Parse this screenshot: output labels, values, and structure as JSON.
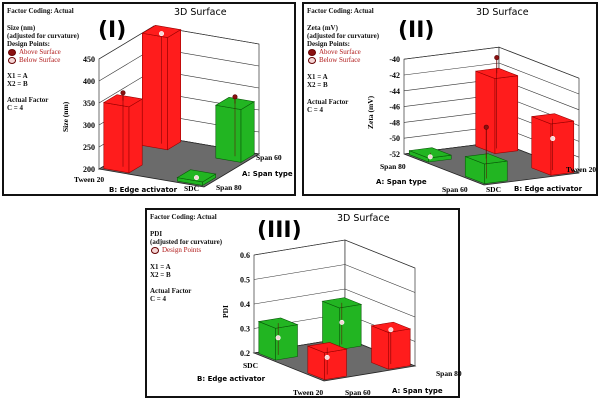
{
  "colors": {
    "green": "#22b522",
    "red": "#ff1c1c",
    "floor": "#6b6b6b",
    "above": "#8b1010",
    "below": "#f5d6d6"
  },
  "panels": [
    {
      "title": "3D Surface",
      "label": "(I)",
      "factor_coding": "Factor Coding: Actual",
      "response": "Size (nm)",
      "adjusted": "(adjusted for curvature)",
      "design_points": "Design Points:",
      "above": "Above Surface",
      "below": "Below Surface",
      "x1": "X1 = A",
      "x2": "X2 = B",
      "actual_factor": "Actual Factor",
      "c": "C = 4",
      "axis_a": "A: Span type",
      "axis_b": "B: Edge activator",
      "levels": {
        "tween": "Tween 20",
        "sdc": "SDC",
        "span80": "Span 80",
        "span60": "Span 60"
      }
    },
    {
      "title": "3D Surface",
      "label": "(II)",
      "factor_coding": "Factor Coding: Actual",
      "response": "Zeta (mV)",
      "adjusted": "(adjusted for curvature)",
      "design_points": "Design Points:",
      "above": "Above Surface",
      "below": "Below Surface",
      "x1": "X1 = A",
      "x2": "X2 = B",
      "actual_factor": "Actual Factor",
      "c": "C = 4",
      "axis_a": "A: Span type",
      "axis_b": "B: Edge activator",
      "levels": {
        "tween": "Tween 20",
        "sdc": "SDC",
        "span80": "Span 80",
        "span60": "Span 60"
      }
    },
    {
      "title": "3D Surface",
      "label": "(III)",
      "factor_coding": "Factor Coding: Actual",
      "response": "PDI",
      "adjusted": "(adjusted for curvature)",
      "design_points": "Design Points",
      "x1": "X1 = A",
      "x2": "X2 = B",
      "actual_factor": "Actual Factor",
      "c": "C = 4",
      "axis_a": "A: Span type",
      "axis_b": "B: Edge activator",
      "levels": {
        "tween": "Tween 20",
        "sdc": "SDC",
        "span80": "Span 80",
        "span60": "Span 60"
      }
    }
  ],
  "chart_data": [
    {
      "type": "bar3d",
      "title": "3D Surface",
      "zlabel": "Size (nm)",
      "xlabel": "B: Edge activator",
      "ylabel": "A: Span type",
      "zlim": [
        200,
        450
      ],
      "ticks": [
        200,
        250,
        300,
        350,
        400,
        450
      ],
      "bars": [
        {
          "A": "Span 80",
          "B": "Tween 20",
          "value": 350,
          "design_point": 368,
          "color": "red"
        },
        {
          "A": "Span 60",
          "B": "Tween 20",
          "value": 455,
          "design_point": 450,
          "color": "red"
        },
        {
          "A": "Span 60",
          "B": "SDC",
          "value": 320,
          "design_point": 335,
          "color": "green"
        },
        {
          "A": "Span 80",
          "B": "SDC",
          "value": 208,
          "design_point": 204,
          "color": "green"
        }
      ]
    },
    {
      "type": "bar3d",
      "title": "3D Surface",
      "zlabel": "Zeta (mV)",
      "xlabel": "A: Span type",
      "ylabel": "B: Edge activator",
      "zlim": [
        -52,
        -40
      ],
      "ticks": [
        -52,
        -50,
        -48,
        -46,
        -44,
        -42,
        -40
      ],
      "bars": [
        {
          "A": "Span 80",
          "B": "SDC",
          "value": -51.5,
          "design_point": -52,
          "color": "green"
        },
        {
          "A": "Span 60",
          "B": "SDC",
          "value": -49.5,
          "design_point": -45.5,
          "color": "green"
        },
        {
          "A": "Span 80",
          "B": "Tween 20",
          "value": -42.5,
          "design_point": -40.5,
          "color": "red"
        },
        {
          "A": "Span 60",
          "B": "Tween 20",
          "value": -45.5,
          "design_point": -48,
          "color": "red"
        }
      ]
    },
    {
      "type": "bar3d",
      "title": "3D Surface",
      "zlabel": "PDI",
      "xlabel": "B: Edge activator",
      "ylabel": "A: Span type",
      "zlim": [
        0.2,
        0.6
      ],
      "ticks": [
        0.2,
        0.3,
        0.4,
        0.5,
        0.6
      ],
      "bars": [
        {
          "A": "Span 60",
          "B": "SDC",
          "value": 0.33,
          "design_point": 0.27,
          "color": "green"
        },
        {
          "A": "Span 60",
          "B": "Tween 20",
          "value": 0.31,
          "design_point": 0.27,
          "color": "red"
        },
        {
          "A": "Span 80",
          "B": "SDC",
          "value": 0.37,
          "design_point": 0.29,
          "color": "green"
        },
        {
          "A": "Span 80",
          "B": "Tween 20",
          "value": 0.35,
          "design_point": 0.34,
          "color": "red"
        }
      ]
    }
  ]
}
